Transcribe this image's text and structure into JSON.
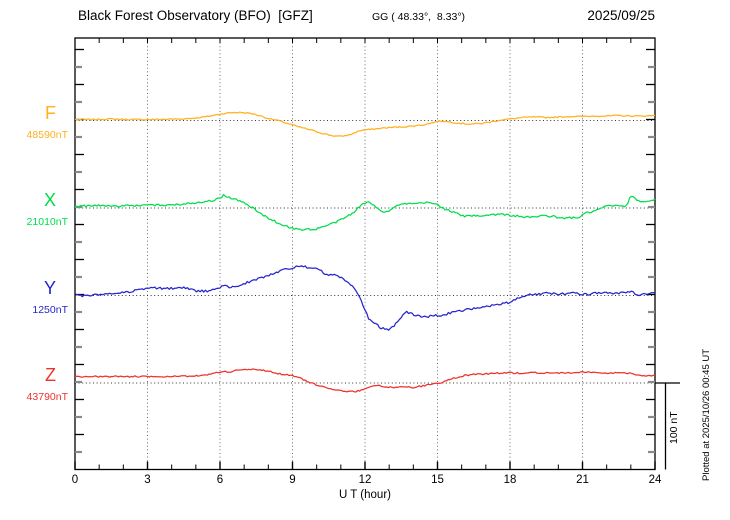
{
  "header": {
    "title": "Black Forest Observatory (BFO)  [GFZ]",
    "coords": "GG ( 48.33°,  8.33°)",
    "date": "2025/09/25"
  },
  "axis": {
    "xlabel": "U T (hour)",
    "hour_labels": [
      "0",
      "3",
      "6",
      "9",
      "12",
      "15",
      "18",
      "21",
      "24"
    ],
    "minor_tick_every_hours": 1,
    "major_tick_every_hours": 3
  },
  "scale_bar": {
    "label": "100 nT",
    "nT": 100
  },
  "footer_note": "Plotted at 2025/10/26 00:45 UT",
  "chart_data": {
    "type": "line",
    "title": "Black Forest Observatory (BFO) [GFZ] magnetogram, 2025/09/25",
    "xlabel": "U T (hour)",
    "x_range": [
      0,
      24
    ],
    "x_ticks": [
      0,
      3,
      6,
      9,
      12,
      15,
      18,
      21,
      24
    ],
    "grid": "dotted vertical gridlines every 3 h; dotted horizontal baseline per trace",
    "legend_position": "left margin, one colored label per trace",
    "scale_bar_nT": 100,
    "series": [
      {
        "name": "F",
        "base_label": "48590nT",
        "base_value": 48590,
        "color": "#ffb11e",
        "noise_nT": 0.7,
        "points": [
          [
            0,
            1.1
          ],
          [
            0.7,
            1.1
          ],
          [
            1.5,
            1.7
          ],
          [
            2.3,
            1.1
          ],
          [
            3,
            1.1
          ],
          [
            3.7,
            1.4
          ],
          [
            4.4,
            1.7
          ],
          [
            5,
            2.9
          ],
          [
            5.5,
            4.6
          ],
          [
            6,
            7.4
          ],
          [
            6.5,
            9.1
          ],
          [
            6.9,
            9.1
          ],
          [
            7.3,
            8
          ],
          [
            7.7,
            5.1
          ],
          [
            8,
            2.3
          ],
          [
            8.4,
            0
          ],
          [
            8.8,
            -3.4
          ],
          [
            9.2,
            -6.9
          ],
          [
            9.7,
            -10.3
          ],
          [
            10.1,
            -13.7
          ],
          [
            10.6,
            -17.1
          ],
          [
            11,
            -18.3
          ],
          [
            11.4,
            -16
          ],
          [
            11.8,
            -11.4
          ],
          [
            12.2,
            -10.3
          ],
          [
            12.6,
            -9.1
          ],
          [
            13,
            -8
          ],
          [
            13.5,
            -7.4
          ],
          [
            14,
            -6.3
          ],
          [
            14.5,
            -4.6
          ],
          [
            15,
            -1.1
          ],
          [
            15.2,
            -0.6
          ],
          [
            15.5,
            -1.7
          ],
          [
            16,
            -3.4
          ],
          [
            16.4,
            -4
          ],
          [
            16.8,
            -3.4
          ],
          [
            17.2,
            -1.7
          ],
          [
            17.6,
            0.6
          ],
          [
            18,
            1.7
          ],
          [
            18.5,
            3.4
          ],
          [
            19,
            4
          ],
          [
            19.5,
            3.4
          ],
          [
            20,
            4
          ],
          [
            20.5,
            4.6
          ],
          [
            21,
            4.6
          ],
          [
            21.5,
            5.1
          ],
          [
            22,
            5.1
          ],
          [
            22.5,
            5.7
          ],
          [
            23,
            5.1
          ],
          [
            23.5,
            5.1
          ],
          [
            24,
            5.7
          ]
        ]
      },
      {
        "name": "X",
        "base_label": "21010nT",
        "base_value": 21010,
        "color": "#00dd4b",
        "noise_nT": 1.1,
        "points": [
          [
            0,
            2.3
          ],
          [
            0.5,
            2.3
          ],
          [
            1,
            2.9
          ],
          [
            1.5,
            2.3
          ],
          [
            2,
            2.3
          ],
          [
            2.5,
            2.9
          ],
          [
            3,
            2.9
          ],
          [
            3.5,
            3.4
          ],
          [
            4,
            3.4
          ],
          [
            4.5,
            4.6
          ],
          [
            5,
            6.3
          ],
          [
            5.5,
            8
          ],
          [
            5.8,
            9.1
          ],
          [
            6,
            11.4
          ],
          [
            6.15,
            14.9
          ],
          [
            6.3,
            12.6
          ],
          [
            6.6,
            10.3
          ],
          [
            7,
            5.7
          ],
          [
            7.3,
            1.1
          ],
          [
            7.7,
            -6.9
          ],
          [
            8,
            -11.4
          ],
          [
            8.5,
            -18.3
          ],
          [
            9,
            -23.4
          ],
          [
            9.3,
            -24.6
          ],
          [
            9.6,
            -24
          ],
          [
            9.9,
            -25.1
          ],
          [
            10.2,
            -21.7
          ],
          [
            10.5,
            -19.4
          ],
          [
            11,
            -13.7
          ],
          [
            11.5,
            -5.7
          ],
          [
            11.8,
            2.3
          ],
          [
            12.1,
            7.4
          ],
          [
            12.45,
            1.7
          ],
          [
            12.8,
            -5.1
          ],
          [
            13.1,
            -1.7
          ],
          [
            13.4,
            4
          ],
          [
            13.8,
            4.6
          ],
          [
            14.2,
            5.1
          ],
          [
            14.6,
            6.3
          ],
          [
            15,
            4
          ],
          [
            15.3,
            -1.1
          ],
          [
            15.7,
            -5.1
          ],
          [
            16.1,
            -9.7
          ],
          [
            16.5,
            -8.6
          ],
          [
            16.9,
            -8.6
          ],
          [
            17.3,
            -7.4
          ],
          [
            17.7,
            -7.4
          ],
          [
            18.1,
            -8.6
          ],
          [
            18.45,
            -9.7
          ],
          [
            18.8,
            -10.9
          ],
          [
            19.1,
            -9.7
          ],
          [
            19.45,
            -8.6
          ],
          [
            19.8,
            -9.7
          ],
          [
            20.1,
            -12
          ],
          [
            20.45,
            -10.9
          ],
          [
            20.8,
            -11.4
          ],
          [
            21.1,
            -6.3
          ],
          [
            21.45,
            -4
          ],
          [
            21.8,
            0
          ],
          [
            22.1,
            2.9
          ],
          [
            22.45,
            2.3
          ],
          [
            22.85,
            2
          ],
          [
            23,
            14.9
          ],
          [
            23.2,
            9.7
          ],
          [
            23.5,
            6.9
          ],
          [
            23.75,
            8
          ],
          [
            24,
            10.3
          ]
        ]
      },
      {
        "name": "Y",
        "base_label": "1250nT",
        "base_value": 1250,
        "color": "#2525cd",
        "noise_nT": 1.3,
        "points": [
          [
            0,
            0
          ],
          [
            0.5,
            -0.6
          ],
          [
            1,
            1.1
          ],
          [
            1.5,
            2.3
          ],
          [
            2,
            3.4
          ],
          [
            2.5,
            5.7
          ],
          [
            3,
            8
          ],
          [
            3.3,
            8.6
          ],
          [
            3.6,
            8
          ],
          [
            4,
            8
          ],
          [
            4.4,
            9.1
          ],
          [
            4.8,
            7.4
          ],
          [
            5.1,
            4.6
          ],
          [
            5.4,
            5.1
          ],
          [
            5.7,
            6.3
          ],
          [
            6,
            9.1
          ],
          [
            6.2,
            11.4
          ],
          [
            6.4,
            8
          ],
          [
            6.6,
            10.3
          ],
          [
            7,
            13.7
          ],
          [
            7.5,
            18.3
          ],
          [
            8,
            22.9
          ],
          [
            8.5,
            28.6
          ],
          [
            9,
            32
          ],
          [
            9.3,
            33.1
          ],
          [
            9.6,
            32.6
          ],
          [
            10,
            31.4
          ],
          [
            10.25,
            26.3
          ],
          [
            10.5,
            22.9
          ],
          [
            10.75,
            24
          ],
          [
            11,
            20.6
          ],
          [
            11.3,
            14.9
          ],
          [
            11.55,
            8
          ],
          [
            11.75,
            -1.1
          ],
          [
            11.95,
            -13.7
          ],
          [
            12.15,
            -26.3
          ],
          [
            12.45,
            -33.1
          ],
          [
            12.7,
            -37.7
          ],
          [
            13,
            -38.9
          ],
          [
            13.2,
            -34.3
          ],
          [
            13.45,
            -27.4
          ],
          [
            13.7,
            -18.3
          ],
          [
            14,
            -21.7
          ],
          [
            14.3,
            -24
          ],
          [
            14.6,
            -24
          ],
          [
            15,
            -22.9
          ],
          [
            15.3,
            -21.7
          ],
          [
            15.6,
            -19.4
          ],
          [
            16,
            -17.1
          ],
          [
            16.5,
            -14.9
          ],
          [
            17,
            -12.6
          ],
          [
            17.5,
            -10.3
          ],
          [
            18,
            -8
          ],
          [
            18.3,
            -3.4
          ],
          [
            18.6,
            0
          ],
          [
            18.8,
            2.3
          ],
          [
            19,
            1.1
          ],
          [
            19.5,
            2.3
          ],
          [
            20,
            1.7
          ],
          [
            20.5,
            2.9
          ],
          [
            21,
            1.1
          ],
          [
            21.5,
            2.3
          ],
          [
            22,
            3.4
          ],
          [
            22.5,
            2.3
          ],
          [
            23,
            4.6
          ],
          [
            23.3,
            1.1
          ],
          [
            23.6,
            2.3
          ],
          [
            24,
            2.3
          ]
        ]
      },
      {
        "name": "Z",
        "base_label": "43790nT",
        "base_value": 43790,
        "color": "#ee3229",
        "noise_nT": 0.8,
        "points": [
          [
            0,
            7.4
          ],
          [
            0.5,
            7.4
          ],
          [
            1,
            7.4
          ],
          [
            1.5,
            7.4
          ],
          [
            2,
            7.4
          ],
          [
            2.5,
            7.4
          ],
          [
            3,
            7.4
          ],
          [
            3.5,
            7.4
          ],
          [
            4,
            7.4
          ],
          [
            4.5,
            7.7
          ],
          [
            5,
            8
          ],
          [
            5.5,
            9.1
          ],
          [
            6,
            12.6
          ],
          [
            6.2,
            13.1
          ],
          [
            6.4,
            11.4
          ],
          [
            6.6,
            14.9
          ],
          [
            7,
            15.4
          ],
          [
            7.4,
            15.4
          ],
          [
            7.8,
            14.3
          ],
          [
            8.2,
            12
          ],
          [
            8.6,
            9.7
          ],
          [
            9,
            8.6
          ],
          [
            9.3,
            5.7
          ],
          [
            9.6,
            2.3
          ],
          [
            10,
            -2.3
          ],
          [
            10.4,
            -5.1
          ],
          [
            10.8,
            -8
          ],
          [
            11.2,
            -9.7
          ],
          [
            11.6,
            -9.7
          ],
          [
            11.9,
            -8
          ],
          [
            12.1,
            -6.3
          ],
          [
            12.3,
            -4
          ],
          [
            12.5,
            -2.3
          ],
          [
            12.8,
            -4
          ],
          [
            13.2,
            -5.1
          ],
          [
            13.6,
            -4.6
          ],
          [
            14,
            -5.1
          ],
          [
            14.4,
            -3.4
          ],
          [
            14.8,
            -1.1
          ],
          [
            15.1,
            0
          ],
          [
            15.4,
            2.9
          ],
          [
            15.7,
            5.7
          ],
          [
            16,
            8
          ],
          [
            16.5,
            9.7
          ],
          [
            17,
            10.3
          ],
          [
            17.6,
            11.4
          ],
          [
            18,
            11.4
          ],
          [
            18.5,
            11.4
          ],
          [
            19,
            12
          ],
          [
            19.5,
            11.4
          ],
          [
            20,
            11.4
          ],
          [
            20.5,
            11.4
          ],
          [
            21,
            12.6
          ],
          [
            21.4,
            12
          ],
          [
            21.8,
            11.4
          ],
          [
            22.2,
            11.4
          ],
          [
            22.6,
            11.4
          ],
          [
            23,
            11.4
          ],
          [
            23.3,
            9.1
          ],
          [
            23.6,
            8
          ],
          [
            24,
            8.6
          ]
        ]
      }
    ]
  }
}
